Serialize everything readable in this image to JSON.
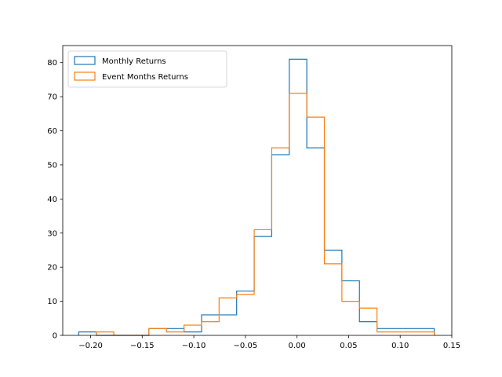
{
  "chart_data": {
    "type": "histogram",
    "title": "",
    "xlabel": "",
    "ylabel": "",
    "xlim": [
      -0.227,
      0.15
    ],
    "ylim": [
      0,
      85
    ],
    "xticks": [
      -0.2,
      -0.15,
      -0.1,
      -0.05,
      0.0,
      0.05,
      0.1,
      0.15
    ],
    "xtick_labels": [
      "−0.20",
      "−0.15",
      "−0.10",
      "−0.05",
      "0.00",
      "0.05",
      "0.10",
      "0.15"
    ],
    "yticks": [
      0,
      10,
      20,
      30,
      40,
      50,
      60,
      70,
      80
    ],
    "ytick_labels": [
      "0",
      "10",
      "20",
      "30",
      "40",
      "50",
      "60",
      "70",
      "80"
    ],
    "grid": false,
    "legend_position": "top-left",
    "series": [
      {
        "name": "Monthly Returns",
        "color": "#1f77b4",
        "bin_edges": [
          -0.2115,
          -0.1945,
          -0.1775,
          -0.1605,
          -0.1435,
          -0.1265,
          -0.1095,
          -0.0925,
          -0.0755,
          -0.0585,
          -0.0415,
          -0.0245,
          -0.0075,
          0.0095,
          0.0265,
          0.0435,
          0.0605,
          0.0775,
          0.0945,
          0.1115,
          0.133
        ],
        "counts": [
          1,
          0,
          0,
          0,
          2,
          2,
          1,
          6,
          6,
          13,
          29,
          53,
          81,
          55,
          25,
          16,
          4,
          2,
          2,
          2
        ]
      },
      {
        "name": "Event Months Returns",
        "color": "#ff7f0e",
        "bin_edges": [
          -0.1945,
          -0.1775,
          -0.1435,
          -0.1265,
          -0.1095,
          -0.0925,
          -0.0755,
          -0.0585,
          -0.0415,
          -0.0245,
          -0.0075,
          0.0095,
          0.0265,
          0.0435,
          0.0605,
          0.0775,
          0.133
        ],
        "counts": [
          1,
          0,
          2,
          1,
          3,
          4,
          11,
          12,
          31,
          55,
          71,
          64,
          21,
          10,
          8,
          1
        ]
      }
    ]
  }
}
